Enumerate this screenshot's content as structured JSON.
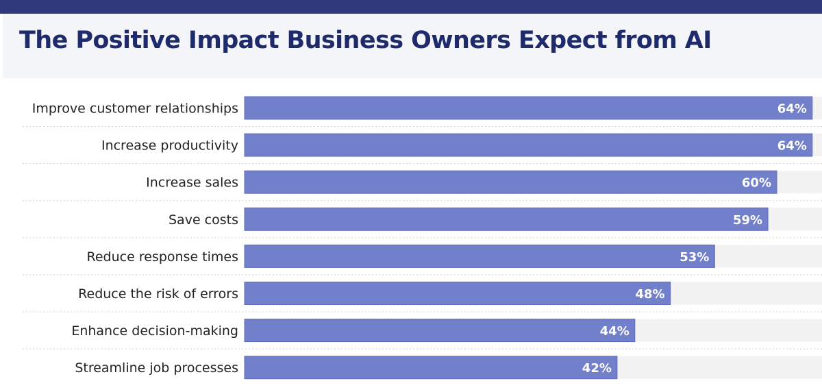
{
  "title": "The Positive Impact Business Owners Expect from AI",
  "colors": {
    "bar": "#7280cc",
    "bar_outline": "#5e6bbd",
    "track": "#f2f2f2",
    "title": "#1f2a6b",
    "top_band": "#2e3a7a",
    "header_bg": "#f4f5f9",
    "divider": "#cfcfcf"
  },
  "chart_data": {
    "type": "bar",
    "orientation": "horizontal",
    "title": "The Positive Impact Business Owners Expect from AI",
    "categories": [
      "Improve customer relationships",
      "Increase productivity",
      "Increase sales",
      "Save costs",
      "Reduce response times",
      "Reduce the risk of errors",
      "Enhance decision-making",
      "Streamline job processes"
    ],
    "values": [
      64,
      64,
      60,
      59,
      53,
      48,
      44,
      42
    ],
    "value_labels": [
      "64%",
      "64%",
      "60%",
      "59%",
      "53%",
      "48%",
      "44%",
      "42%"
    ],
    "unit": "%",
    "xlim": [
      0,
      100
    ],
    "grid": false,
    "legend": "none"
  }
}
